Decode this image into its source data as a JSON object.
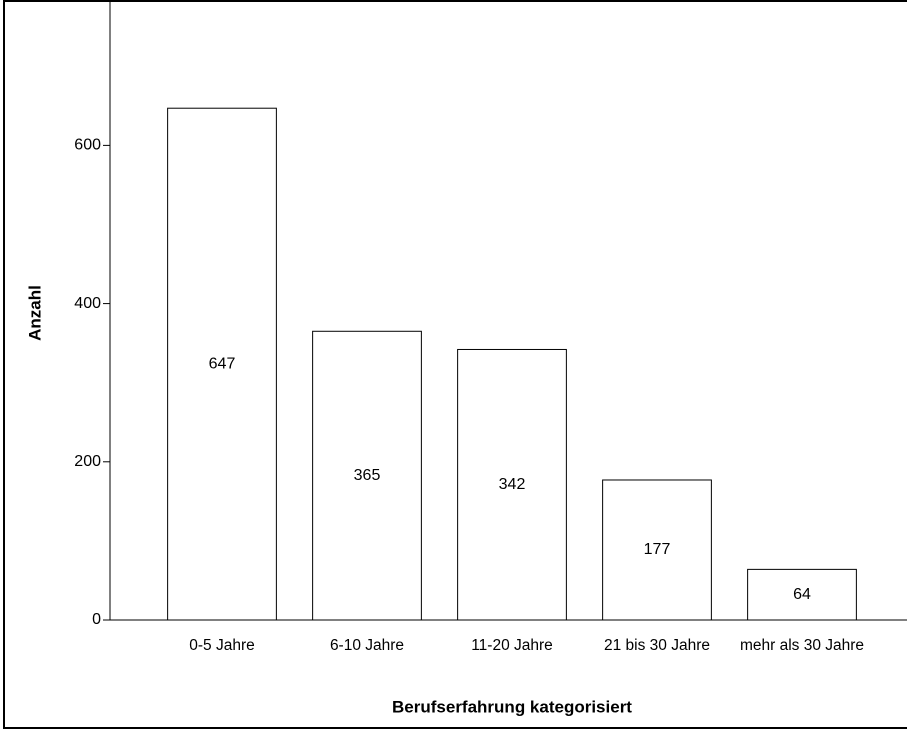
{
  "chart_data": {
    "type": "bar",
    "xlabel": "Berufserfahrung kategorisiert",
    "ylabel": "Anzahl",
    "categories": [
      "0-5 Jahre",
      "6-10 Jahre",
      "11-20 Jahre",
      "21 bis 30 Jahre",
      "mehr als 30 Jahre"
    ],
    "values": [
      647,
      365,
      342,
      177,
      64
    ],
    "color": "#ffffff",
    "ylim": [
      0,
      780
    ],
    "yticks": [
      0,
      200,
      400,
      600
    ],
    "grid": false
  }
}
